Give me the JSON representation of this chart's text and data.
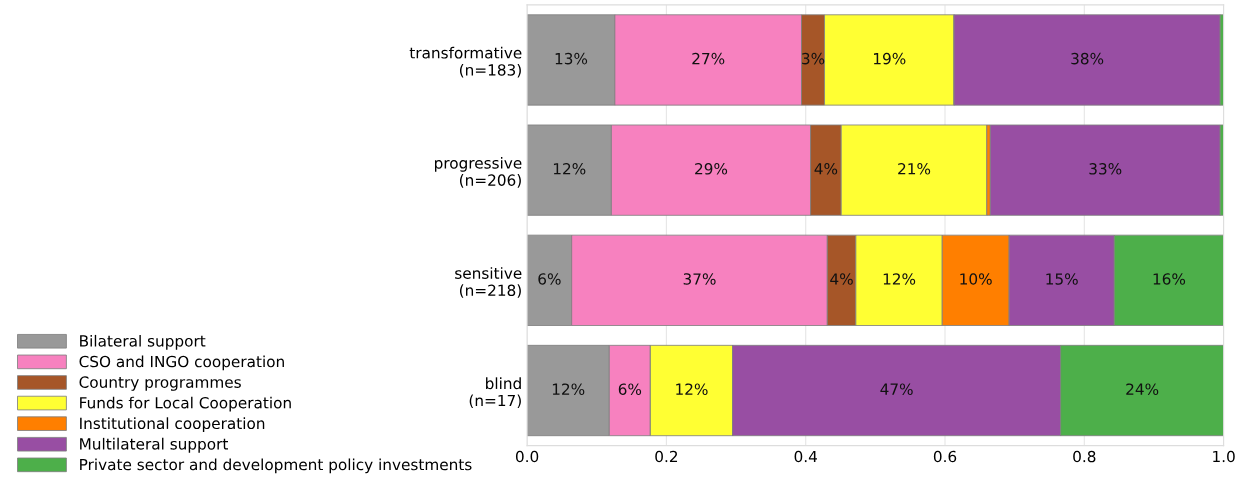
{
  "chart_data": {
    "type": "bar",
    "orientation": "horizontal",
    "stacked": true,
    "categories": [
      "transformative\n(n=183)",
      "progressive\n(n=206)",
      "sensitive\n(n=218)",
      "blind\n(n=17)"
    ],
    "series": [
      {
        "name": "Bilateral support",
        "color": "#999999",
        "values": [
          0.126,
          0.121,
          0.064,
          0.118
        ],
        "value_labels": [
          "13%",
          "12%",
          "6%",
          "12%"
        ]
      },
      {
        "name": "CSO and INGO cooperation",
        "color": "#f781bf",
        "values": [
          0.268,
          0.286,
          0.367,
          0.059
        ],
        "value_labels": [
          "27%",
          "29%",
          "37%",
          "6%"
        ]
      },
      {
        "name": "Country programmes",
        "color": "#a65628",
        "values": [
          0.033,
          0.044,
          0.041,
          0
        ],
        "value_labels": [
          "3%",
          "4%",
          "4%",
          null
        ]
      },
      {
        "name": "Funds for Local Cooperation",
        "color": "#ffff33",
        "values": [
          0.186,
          0.209,
          0.124,
          0.118
        ],
        "value_labels": [
          "19%",
          "21%",
          "12%",
          "12%"
        ]
      },
      {
        "name": "Institutional cooperation",
        "color": "#ff7f00",
        "values": [
          0,
          0.005,
          0.096,
          0
        ],
        "value_labels": [
          null,
          null,
          "10%",
          null
        ]
      },
      {
        "name": "Multilateral support",
        "color": "#984ea3",
        "values": [
          0.382,
          0.33,
          0.151,
          0.471
        ],
        "value_labels": [
          "38%",
          "33%",
          "15%",
          "47%"
        ]
      },
      {
        "name": "Private sector and development policy investments",
        "color": "#4daf4a",
        "values": [
          0.005,
          0.005,
          0.157,
          0.235
        ],
        "value_labels": [
          null,
          null,
          "16%",
          "24%"
        ]
      }
    ],
    "xlim": [
      0,
      1
    ],
    "xticks": [
      {
        "value": 0,
        "label": "0.0"
      },
      {
        "value": 0.2,
        "label": "0.2"
      },
      {
        "value": 0.4,
        "label": "0.4"
      },
      {
        "value": 0.6,
        "label": "0.6"
      },
      {
        "value": 0.8,
        "label": "0.8"
      },
      {
        "value": 1,
        "label": "1.0"
      }
    ],
    "grid": "x",
    "legend": "bottom left"
  }
}
